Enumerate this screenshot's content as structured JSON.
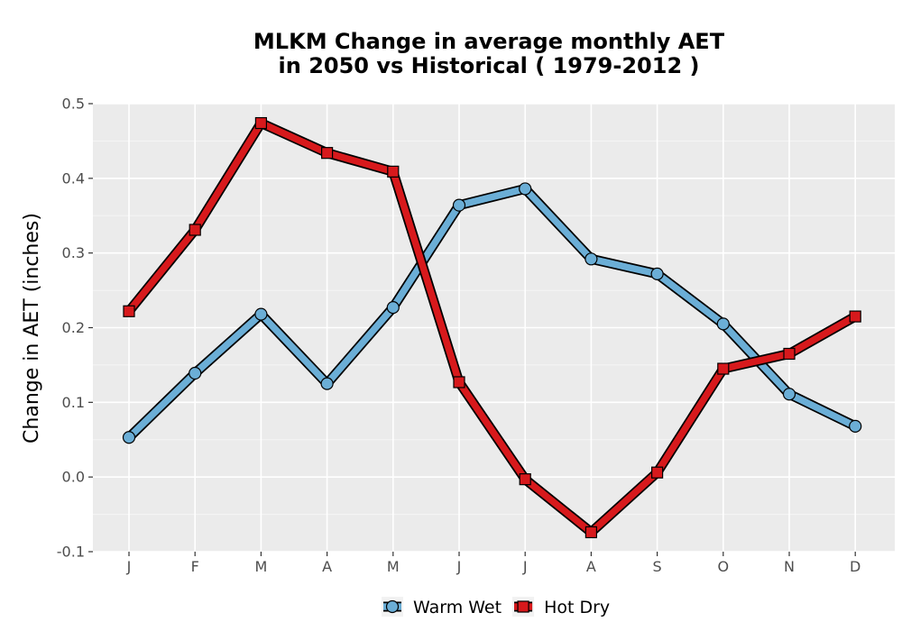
{
  "chart_data": {
    "type": "line",
    "title_line1": "MLKM  Change in average monthly AET",
    "title_line2": "in 2050 vs Historical ( 1979-2012 )",
    "xlabel": "",
    "ylabel": "Change in AET (inches)",
    "categories": [
      "J",
      "F",
      "M",
      "A",
      "M",
      "J",
      "J",
      "A",
      "S",
      "O",
      "N",
      "D"
    ],
    "ylim": [
      -0.1,
      0.5
    ],
    "yticks": [
      "-0.1",
      "0.0",
      "0.1",
      "0.2",
      "0.3",
      "0.4",
      "0.5"
    ],
    "grid": true,
    "legend_position": "bottom",
    "series": [
      {
        "name": "Warm Wet",
        "color": "#6baed6",
        "marker": "circle",
        "values": [
          0.053,
          0.139,
          0.218,
          0.125,
          0.227,
          0.364,
          0.386,
          0.292,
          0.272,
          0.205,
          0.111,
          0.068
        ]
      },
      {
        "name": "Hot Dry",
        "color": "#d7191c",
        "marker": "square",
        "values": [
          0.222,
          0.331,
          0.474,
          0.434,
          0.409,
          0.127,
          -0.003,
          -0.074,
          0.006,
          0.145,
          0.165,
          0.215
        ]
      }
    ]
  },
  "colors": {
    "panel_background": "#ebebeb",
    "grid": "#ffffff",
    "outline": "#000000"
  }
}
